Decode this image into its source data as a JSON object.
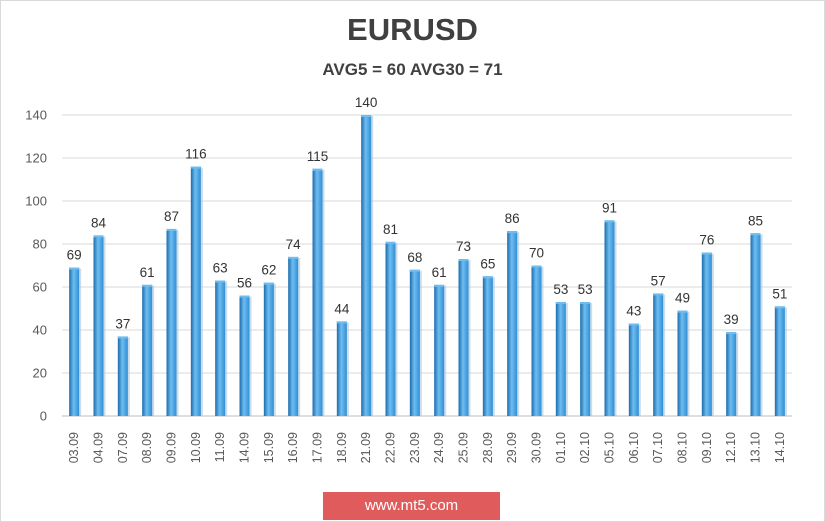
{
  "chart_data": {
    "type": "bar",
    "title": "EURUSD",
    "subtitle": "AVG5 = 60 AVG30 = 71",
    "categories": [
      "03.09",
      "04.09",
      "07.09",
      "08.09",
      "09.09",
      "10.09",
      "11.09",
      "14.09",
      "15.09",
      "16.09",
      "17.09",
      "18.09",
      "21.09",
      "22.09",
      "23.09",
      "24.09",
      "25.09",
      "28.09",
      "29.09",
      "30.09",
      "01.10",
      "02.10",
      "05.10",
      "06.10",
      "07.10",
      "08.10",
      "09.10",
      "12.10",
      "13.10",
      "14.10"
    ],
    "values": [
      69,
      84,
      37,
      61,
      87,
      116,
      63,
      56,
      62,
      74,
      115,
      44,
      140,
      81,
      68,
      61,
      73,
      65,
      86,
      70,
      53,
      53,
      91,
      43,
      57,
      49,
      76,
      39,
      85,
      51
    ],
    "ylim": [
      0,
      140
    ],
    "yticks": [
      0,
      20,
      40,
      60,
      80,
      100,
      120,
      140
    ],
    "grid": true,
    "bar_color": "#2e8fd6",
    "bar_color_light": "#6fbdf0",
    "bar_color_dark": "#1a6cad",
    "xlabel": "",
    "ylabel": ""
  },
  "watermark": "www.mt5.com"
}
